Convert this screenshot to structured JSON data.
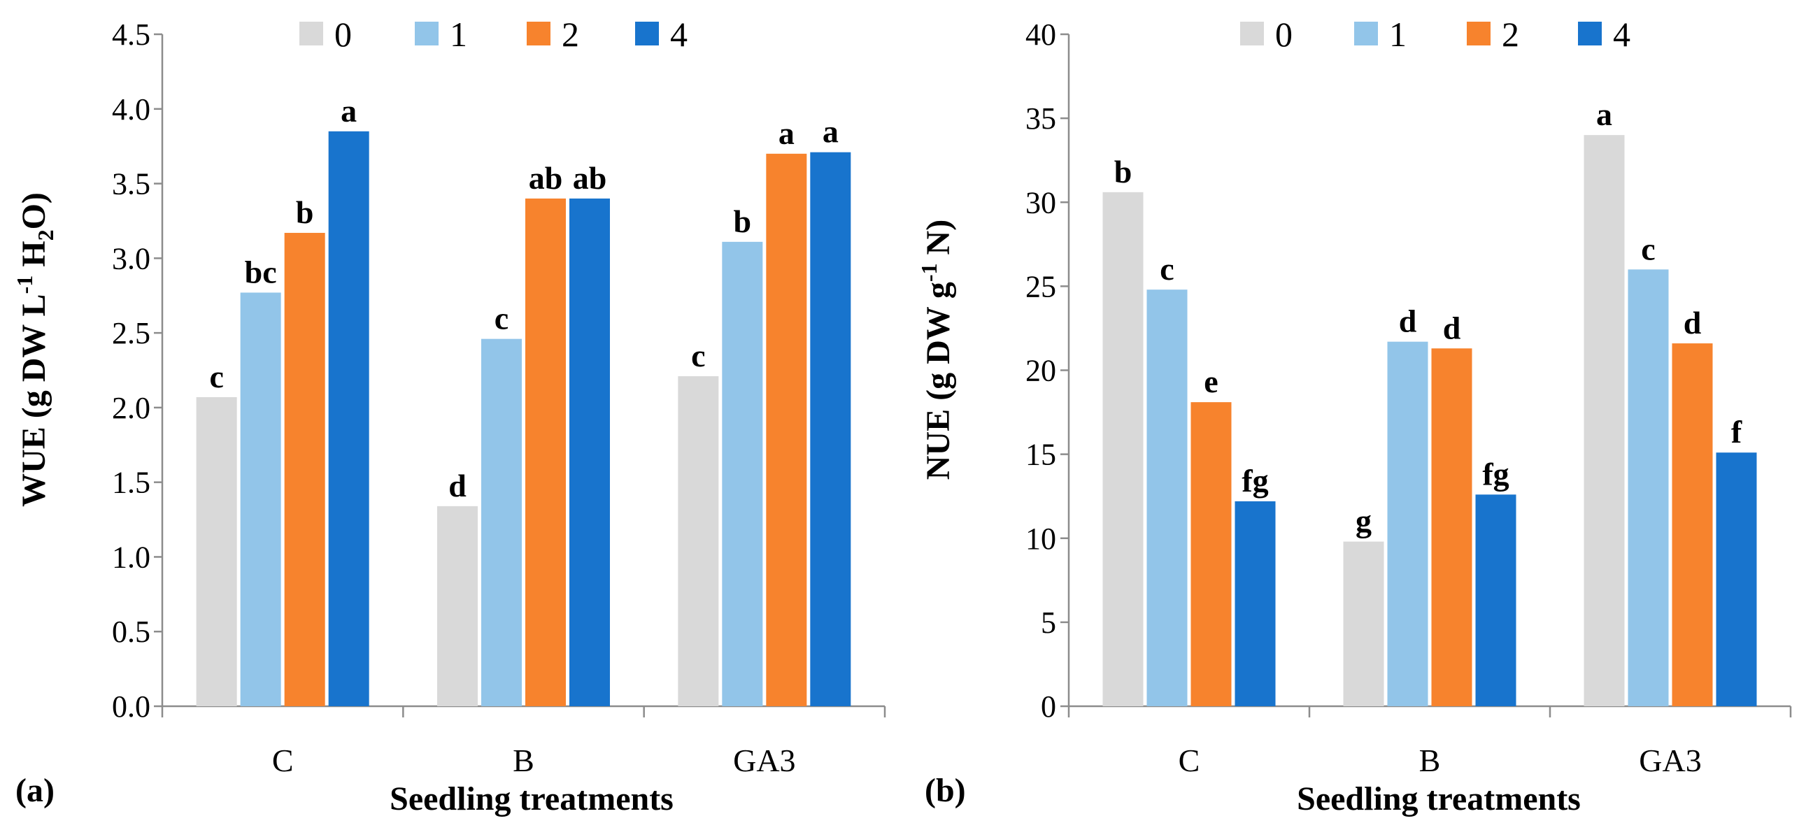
{
  "legend": [
    "0",
    "1",
    "2",
    "4"
  ],
  "colors": {
    "0": "#d9d9d9",
    "1": "#92c5e9",
    "2": "#f7832d",
    "4": "#1874cd"
  },
  "chart_data": [
    {
      "type": "bar",
      "panel_label": "(a)",
      "categories": [
        "C",
        "B",
        "GA3"
      ],
      "ylabel_parts": {
        "main": "WUE (g DW L",
        "sup": "-1",
        "mid": " H",
        "sub": "2",
        "end": "O)"
      },
      "xlabel": "Seedling treatments",
      "ylim": [
        0,
        4.5
      ],
      "ytick_labels": [
        "0.0",
        "0.5",
        "1.0",
        "1.5",
        "2.0",
        "2.5",
        "3.0",
        "3.5",
        "4.0",
        "4.5"
      ],
      "series": [
        {
          "name": "0",
          "values": [
            2.07,
            1.34,
            2.21
          ],
          "labels": [
            "c",
            "d",
            "c"
          ]
        },
        {
          "name": "1",
          "values": [
            2.77,
            2.46,
            3.11
          ],
          "labels": [
            "bc",
            "c",
            "b"
          ]
        },
        {
          "name": "2",
          "values": [
            3.17,
            3.4,
            3.7
          ],
          "labels": [
            "b",
            "ab",
            "a"
          ]
        },
        {
          "name": "4",
          "values": [
            3.85,
            3.4,
            3.71
          ],
          "labels": [
            "a",
            "ab",
            "a"
          ]
        }
      ]
    },
    {
      "type": "bar",
      "panel_label": "(b)",
      "categories": [
        "C",
        "B",
        "GA3"
      ],
      "ylabel_parts": {
        "main": "NUE (g DW g",
        "sup": "-1",
        "mid": " N)",
        "sub": "",
        "end": ""
      },
      "xlabel": "Seedling treatments",
      "ylim": [
        0,
        40
      ],
      "ytick_labels": [
        "0",
        "5",
        "10",
        "15",
        "20",
        "25",
        "30",
        "35",
        "40"
      ],
      "series": [
        {
          "name": "0",
          "values": [
            30.6,
            9.8,
            34.0
          ],
          "labels": [
            "b",
            "g",
            "a"
          ]
        },
        {
          "name": "1",
          "values": [
            24.8,
            21.7,
            26.0
          ],
          "labels": [
            "c",
            "d",
            "c"
          ]
        },
        {
          "name": "2",
          "values": [
            18.1,
            21.3,
            21.6
          ],
          "labels": [
            "e",
            "d",
            "d"
          ]
        },
        {
          "name": "4",
          "values": [
            12.2,
            12.6,
            15.1
          ],
          "labels": [
            "fg",
            "fg",
            "f"
          ]
        }
      ]
    }
  ]
}
